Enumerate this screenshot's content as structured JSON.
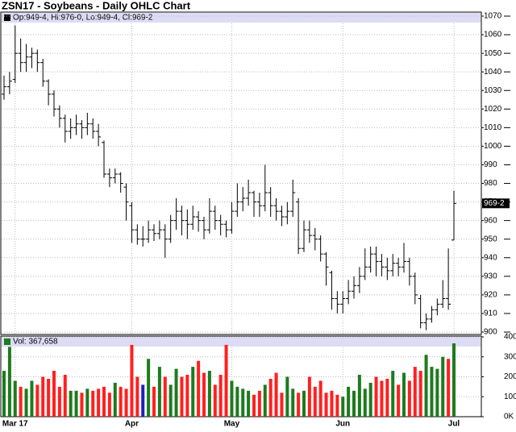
{
  "chart_data": {
    "type": "ohlc",
    "title": "ZSN17 - Soybeans - Daily OHLC Chart",
    "info": "Op:949-4, Hi:976-0, Lo:949-4, Cl:969-2",
    "volume_label": "Vol: 367,658",
    "categories": [
      null,
      null,
      "Mar 17",
      null,
      null,
      null,
      null,
      null,
      null,
      null,
      null,
      null,
      null,
      null,
      null,
      null,
      null,
      null,
      null,
      null,
      null,
      null,
      null,
      "Apr",
      null,
      null,
      null,
      null,
      null,
      null,
      null,
      null,
      null,
      null,
      null,
      null,
      null,
      null,
      null,
      null,
      null,
      "May",
      null,
      null,
      null,
      null,
      null,
      null,
      null,
      null,
      null,
      null,
      null,
      null,
      null,
      null,
      null,
      null,
      null,
      null,
      null,
      "Jun",
      null,
      null,
      null,
      null,
      null,
      null,
      null,
      null,
      null,
      null,
      null,
      null,
      null,
      null,
      null,
      null,
      null,
      null,
      null,
      "Jul"
    ],
    "open": [
      1028,
      1032,
      1036,
      1050,
      1045,
      1048,
      1050,
      1045,
      1035,
      1028,
      1020,
      1015,
      1008,
      1010,
      1012,
      1010,
      1012,
      1008,
      1002,
      985,
      983,
      985,
      978,
      968,
      955,
      950,
      950,
      955,
      953,
      955,
      950,
      960,
      965,
      960,
      958,
      962,
      960,
      955,
      965,
      960,
      958,
      955,
      965,
      970,
      972,
      975,
      970,
      968,
      975,
      968,
      965,
      962,
      965,
      970,
      945,
      955,
      952,
      950,
      942,
      932,
      918,
      915,
      918,
      922,
      925,
      930,
      935,
      942,
      938,
      935,
      933,
      937,
      935,
      938,
      930,
      918,
      905,
      907,
      912,
      915,
      918,
      949.5
    ],
    "high": [
      1038,
      1040,
      1065,
      1058,
      1055,
      1053,
      1052,
      1047,
      1036,
      1030,
      1022,
      1017,
      1015,
      1017,
      1014,
      1018,
      1015,
      1012,
      1003,
      988,
      988,
      986,
      980,
      970,
      958,
      957,
      960,
      958,
      960,
      958,
      963,
      972,
      968,
      966,
      968,
      965,
      962,
      972,
      968,
      963,
      960,
      970,
      980,
      978,
      982,
      976,
      975,
      990,
      978,
      972,
      968,
      970,
      982,
      972,
      960,
      960,
      956,
      952,
      943,
      933,
      922,
      922,
      928,
      930,
      935,
      945,
      946,
      946,
      942,
      940,
      942,
      940,
      948,
      940,
      932,
      920,
      910,
      914,
      918,
      928,
      945,
      976
    ],
    "low": [
      1025,
      1028,
      1034,
      1040,
      1040,
      1042,
      1040,
      1032,
      1022,
      1016,
      1010,
      1002,
      1004,
      1006,
      1004,
      1006,
      1004,
      1000,
      983,
      978,
      980,
      975,
      960,
      948,
      947,
      946,
      948,
      949,
      950,
      940,
      948,
      955,
      952,
      950,
      955,
      954,
      950,
      953,
      955,
      952,
      951,
      953,
      962,
      965,
      968,
      962,
      962,
      965,
      962,
      960,
      957,
      958,
      962,
      942,
      943,
      948,
      944,
      938,
      925,
      912,
      910,
      910,
      915,
      918,
      921,
      928,
      932,
      930,
      930,
      928,
      930,
      930,
      932,
      925,
      915,
      902,
      901,
      905,
      909,
      913,
      912,
      949.5
    ],
    "close": [
      1032,
      1035,
      1050,
      1045,
      1048,
      1050,
      1045,
      1035,
      1028,
      1020,
      1015,
      1008,
      1010,
      1012,
      1010,
      1012,
      1008,
      1005,
      985,
      983,
      985,
      980,
      970,
      955,
      950,
      950,
      955,
      953,
      955,
      950,
      960,
      965,
      960,
      958,
      962,
      960,
      955,
      965,
      960,
      958,
      955,
      965,
      970,
      972,
      975,
      970,
      968,
      975,
      968,
      965,
      962,
      965,
      975,
      945,
      955,
      952,
      950,
      942,
      935,
      918,
      915,
      918,
      922,
      925,
      930,
      935,
      942,
      938,
      935,
      933,
      937,
      935,
      938,
      930,
      920,
      905,
      907,
      912,
      915,
      918,
      915,
      969.25
    ],
    "volume": [
      230000,
      350000,
      180000,
      150000,
      140000,
      180000,
      160000,
      200000,
      190000,
      230000,
      150000,
      210000,
      130000,
      130000,
      120000,
      140000,
      130000,
      140000,
      150000,
      120000,
      170000,
      150000,
      140000,
      360000,
      200000,
      160000,
      290000,
      150000,
      250000,
      200000,
      160000,
      240000,
      200000,
      210000,
      250000,
      280000,
      220000,
      230000,
      160000,
      210000,
      360000,
      180000,
      150000,
      140000,
      130000,
      110000,
      130000,
      160000,
      190000,
      220000,
      120000,
      200000,
      140000,
      120000,
      130000,
      200000,
      150000,
      180000,
      120000,
      130000,
      110000,
      100000,
      150000,
      130000,
      210000,
      140000,
      170000,
      200000,
      180000,
      190000,
      230000,
      160000,
      220000,
      180000,
      250000,
      230000,
      310000,
      250000,
      240000,
      300000,
      290000,
      367658
    ],
    "up_color": "#1e7a1e",
    "down_color": "#ff2020",
    "flat_color": "#2020c0",
    "bar_color": "#000000",
    "ylim": [
      900,
      1070
    ],
    "yticks": [
      900,
      910,
      920,
      930,
      940,
      950,
      960,
      970,
      980,
      990,
      1000,
      1010,
      1020,
      1030,
      1040,
      1050,
      1060,
      1070
    ],
    "last_price": {
      "value": 969.25,
      "label": "969-2"
    },
    "y2lim": [
      0,
      400000
    ],
    "y2ticks": [
      {
        "value": 0,
        "label": "0K"
      },
      {
        "value": 100000,
        "label": "100K"
      },
      {
        "value": 200000,
        "label": "200K"
      },
      {
        "value": 300000,
        "label": "300K"
      },
      {
        "value": 400000,
        "label": "400K"
      }
    ],
    "grid": true
  }
}
